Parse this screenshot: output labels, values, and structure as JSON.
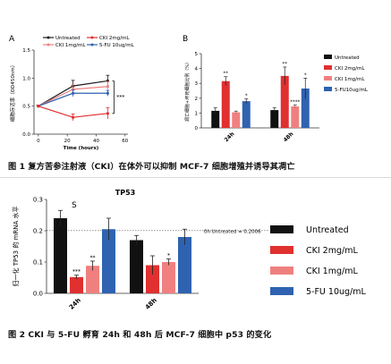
{
  "figure1": {
    "caption": "图 1 复方苦参注射液（CKI）在体外可以抑制 MCF-7 细胞增殖并诱导其凋亡",
    "panelA": {
      "type": "line",
      "panel_label": "A",
      "xlabel": "Time (hours)",
      "ylabel": "细胞存活率（OD450nm）",
      "x": [
        0,
        24,
        48
      ],
      "xticks": [
        0,
        20,
        40,
        60
      ],
      "ylim": [
        0.0,
        1.5
      ],
      "yticks": [
        0.0,
        0.5,
        1.0,
        1.5
      ],
      "ytick_labels": [
        "0.0",
        "0.5",
        "1.0",
        "1.5"
      ],
      "series": [
        {
          "name": "Untreated",
          "color": "#1a1a1a",
          "values": [
            0.5,
            0.86,
            0.95
          ],
          "err": [
            0.02,
            0.1,
            0.1
          ]
        },
        {
          "name": "CKI 1mg/mL",
          "color": "#f08080",
          "values": [
            0.5,
            0.8,
            0.85
          ],
          "err": [
            0.02,
            0.08,
            0.09
          ]
        },
        {
          "name": "5-FU 10ug/mL",
          "color": "#2f62b0",
          "values": [
            0.5,
            0.73,
            0.73
          ],
          "err": [
            0.02,
            0.06,
            0.05
          ]
        },
        {
          "name": "CKI 2mg/mL",
          "color": "#e03030",
          "values": [
            0.5,
            0.3,
            0.37
          ],
          "err": [
            0.02,
            0.06,
            0.1
          ]
        }
      ],
      "annotation": "***"
    },
    "panelB": {
      "type": "bar",
      "panel_label": "B",
      "ylabel": "凋亡细胞+坏死细胞比例（%）",
      "categories": [
        "24h",
        "48h"
      ],
      "ylim": [
        0,
        5
      ],
      "yticks": [
        0,
        1,
        2,
        3,
        4,
        5
      ],
      "series": [
        {
          "name": "Untreated",
          "color": "#111111",
          "values": [
            1.15,
            1.2
          ],
          "err": [
            0.2,
            0.15
          ],
          "sig": [
            "",
            ""
          ]
        },
        {
          "name": "CKI 2mg/mL",
          "color": "#e03030",
          "values": [
            3.15,
            3.5
          ],
          "err": [
            0.3,
            0.6
          ],
          "sig": [
            "**",
            "**"
          ]
        },
        {
          "name": "CKI 1mg/mL",
          "color": "#f08080",
          "values": [
            1.05,
            1.45
          ],
          "err": [
            0.08,
            0.1
          ],
          "sig": [
            "",
            "****"
          ]
        },
        {
          "name": "5-FU10ug/mL",
          "color": "#2f62b0",
          "values": [
            1.8,
            2.65
          ],
          "err": [
            0.15,
            0.7
          ],
          "sig": [
            "*",
            "*"
          ]
        }
      ]
    }
  },
  "figure2": {
    "caption": "图 2 CKI 与 5-FU 孵育 24h 和 48h 后 MCF-7 细胞中 p53 的变化",
    "chart_data": {
      "type": "bar",
      "title": "TP53",
      "panel_label": "S",
      "ylabel": "归一化 TP53 的 mRNA 水平",
      "categories": [
        "24h",
        "48h"
      ],
      "ylim": [
        0,
        0.3
      ],
      "yticks": [
        0.0,
        0.1,
        0.2,
        0.3
      ],
      "ytick_labels": [
        "0.0",
        "0.1",
        "0.2",
        "0.3"
      ],
      "reference_line": {
        "value": 0.2006,
        "label": "0h Untreated = 0.2006"
      },
      "series": [
        {
          "name": "Untreated",
          "color": "#111111",
          "values": [
            0.24,
            0.17
          ],
          "err": [
            0.025,
            0.015
          ],
          "sig": [
            "",
            ""
          ]
        },
        {
          "name": "CKI 2mg/mL",
          "color": "#e03030",
          "values": [
            0.052,
            0.09
          ],
          "err": [
            0.006,
            0.03
          ],
          "sig": [
            "***",
            ""
          ]
        },
        {
          "name": "CKI 1mg/mL",
          "color": "#f08080",
          "values": [
            0.088,
            0.1
          ],
          "err": [
            0.015,
            0.01
          ],
          "sig": [
            "**",
            "*"
          ]
        },
        {
          "name": "5-FU 10ug/mL",
          "color": "#2f62b0",
          "values": [
            0.205,
            0.18
          ],
          "err": [
            0.035,
            0.025
          ],
          "sig": [
            "",
            ""
          ]
        }
      ]
    }
  }
}
